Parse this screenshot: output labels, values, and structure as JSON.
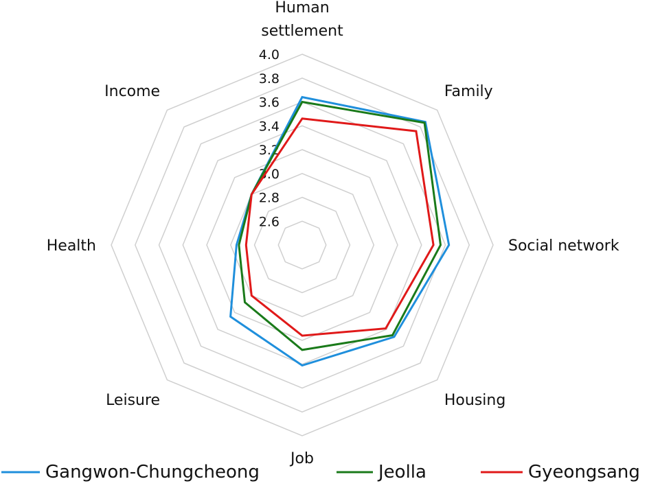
{
  "chart_data": {
    "type": "radar",
    "title": "",
    "categories": [
      "Human settlement",
      "Family",
      "Social network",
      "Housing",
      "Job",
      "Leisure",
      "Health",
      "Income"
    ],
    "category_label_lines": [
      [
        "Human",
        "settlement"
      ],
      [
        "Family"
      ],
      [
        "Social network"
      ],
      [
        "Housing"
      ],
      [
        "Job"
      ],
      [
        "Leisure"
      ],
      [
        "Health"
      ],
      [
        "Income"
      ]
    ],
    "r_ticks": [
      "2.6",
      "2.8",
      "3.0",
      "3.2",
      "3.4",
      "3.6",
      "3.8",
      "4.0"
    ],
    "r_range": [
      2.4,
      4.0
    ],
    "grid": true,
    "legend_position": "bottom",
    "series": [
      {
        "name": "Gangwon-Chungcheong",
        "color": "#1f8fdc",
        "values": [
          3.64,
          3.86,
          3.63,
          3.49,
          3.41,
          3.25,
          2.95,
          3.0
        ]
      },
      {
        "name": "Jeolla",
        "color": "#1a7a1a",
        "values": [
          3.6,
          3.85,
          3.56,
          3.47,
          3.28,
          3.08,
          2.93,
          3.0
        ]
      },
      {
        "name": "Gyeongsang",
        "color": "#e01919",
        "values": [
          3.46,
          3.75,
          3.5,
          3.39,
          3.16,
          3.0,
          2.87,
          3.0
        ]
      }
    ]
  }
}
